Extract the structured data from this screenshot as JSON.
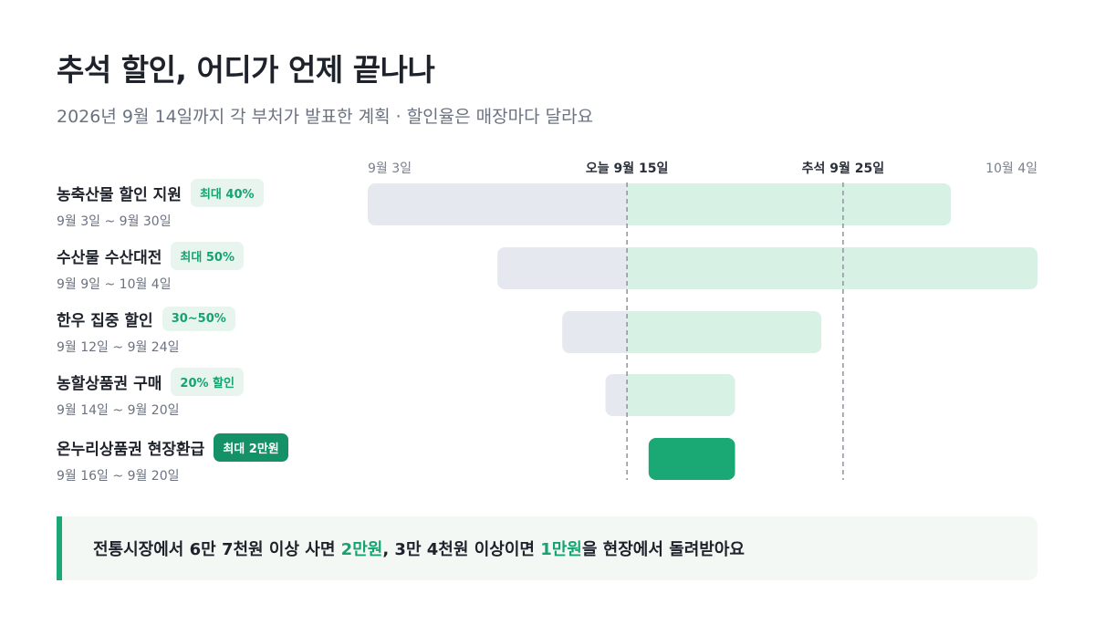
{
  "header": {
    "title": "추석 할인, 어디가 언제 끝나나",
    "subtitle": "2026년 9월 14일까지 각 부처가 발표한 계획 · 할인율은 매장마다 달라요"
  },
  "chart_data": {
    "type": "gantt",
    "axis": {
      "start": "2026-09-03",
      "end": "2026-10-04",
      "ticks": [
        {
          "date": "2026-09-03",
          "label": "9월 3일",
          "emphasis": false
        },
        {
          "date": "2026-09-15",
          "label": "오늘 9월 15일",
          "emphasis": true
        },
        {
          "date": "2026-09-25",
          "label": "추석 9월 25일",
          "emphasis": true
        },
        {
          "date": "2026-10-04",
          "label": "10월 4일",
          "emphasis": false
        }
      ]
    },
    "markers": [
      {
        "date": "2026-09-15",
        "label": "오늘"
      },
      {
        "date": "2026-09-25",
        "label": "추석"
      }
    ],
    "rows": [
      {
        "name": "농축산물 할인 지원",
        "badge": "최대 40%",
        "badge_style": "light",
        "dates": "9월 3일 ~ 9월 30일",
        "start": "2026-09-03",
        "end": "2026-09-30",
        "highlight": false
      },
      {
        "name": "수산물 수산대전",
        "badge": "최대 50%",
        "badge_style": "light",
        "dates": "9월 9일 ~ 10월 4일",
        "start": "2026-09-09",
        "end": "2026-10-04",
        "highlight": false
      },
      {
        "name": "한우 집중 할인",
        "badge": "30~50%",
        "badge_style": "light",
        "dates": "9월 12일 ~ 9월 24일",
        "start": "2026-09-12",
        "end": "2026-09-24",
        "highlight": false
      },
      {
        "name": "농할상품권 구매",
        "badge": "20% 할인",
        "badge_style": "light",
        "dates": "9월 14일 ~ 9월 20일",
        "start": "2026-09-14",
        "end": "2026-09-20",
        "highlight": false
      },
      {
        "name": "온누리상품권 현장환급",
        "badge": "최대 2만원",
        "badge_style": "solid",
        "dates": "9월 16일 ~ 9월 20일",
        "start": "2026-09-16",
        "end": "2026-09-20",
        "highlight": true
      }
    ],
    "colors": {
      "past": "#e6e8ef",
      "future": "#d8f1e5",
      "highlight": "#1aa874",
      "marker": "#8d939e"
    }
  },
  "callout": {
    "part1": "전통시장에서 6만 7천원 이상 사면 ",
    "hl1": "2만원",
    "part2": ", 3만 4천원 이상이면 ",
    "hl2": "1만원",
    "part3": "을 현장에서 돌려받아요"
  }
}
